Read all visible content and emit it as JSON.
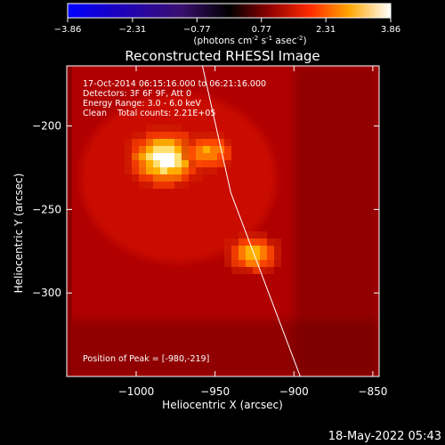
{
  "colorbar": {
    "ticks": [
      "-3.86",
      "-2.31",
      "-0.77",
      "0.77",
      "2.31",
      "3.86"
    ],
    "range": [
      -3.86,
      3.86
    ],
    "unit_prefix": "(photons cm",
    "unit_exp1": "-2",
    "unit_mid": " s",
    "unit_exp2": "-1",
    "unit_mid2": " asec",
    "unit_exp3": "-2",
    "unit_suffix": ")"
  },
  "annotations": {
    "line1": "17-Oct-2014 06:15:16.000 to 06:21:16.000",
    "line2": "Detectors: 3F 6F 9F, Att 0",
    "line3": "Energy Range: 3.0 - 6.0 keV",
    "line4": "Clean    Total counts: 2.21E+05",
    "peak": "Position of Peak = [-980,-219]"
  },
  "footer": {
    "date": "18-May-2022 05:43"
  },
  "chart_data": {
    "type": "heatmap",
    "title": "Reconstructed RHESSI Image",
    "xlabel": "Heliocentric X (arcsec)",
    "ylabel": "Heliocentric Y (arcsec)",
    "xlim": [
      -1044,
      -846
    ],
    "ylim": [
      -350,
      -164
    ],
    "x_ticks": [
      -1000,
      -950,
      -900,
      -850
    ],
    "y_ticks": [
      -200,
      -250,
      -300
    ],
    "x_tick_labels": [
      "−1000",
      "−950",
      "−900",
      "−850"
    ],
    "y_tick_labels": [
      "−200",
      "−250",
      "−300"
    ],
    "colormap": "red-temperature",
    "sources": [
      {
        "x": -980,
        "y": -219,
        "intensity": 1.0
      },
      {
        "x": -954,
        "y": -216,
        "intensity": 0.55
      },
      {
        "x": -927,
        "y": -278,
        "intensity": 0.62
      }
    ],
    "peak": [
      -980,
      -219
    ],
    "limb": [
      [
        -958,
        -164
      ],
      [
        -940,
        -240
      ],
      [
        -920,
        -290
      ],
      [
        -896,
        -350
      ]
    ]
  },
  "colors": {
    "background": "#000000",
    "text": "#ffffff",
    "limb": "#ffffff"
  }
}
